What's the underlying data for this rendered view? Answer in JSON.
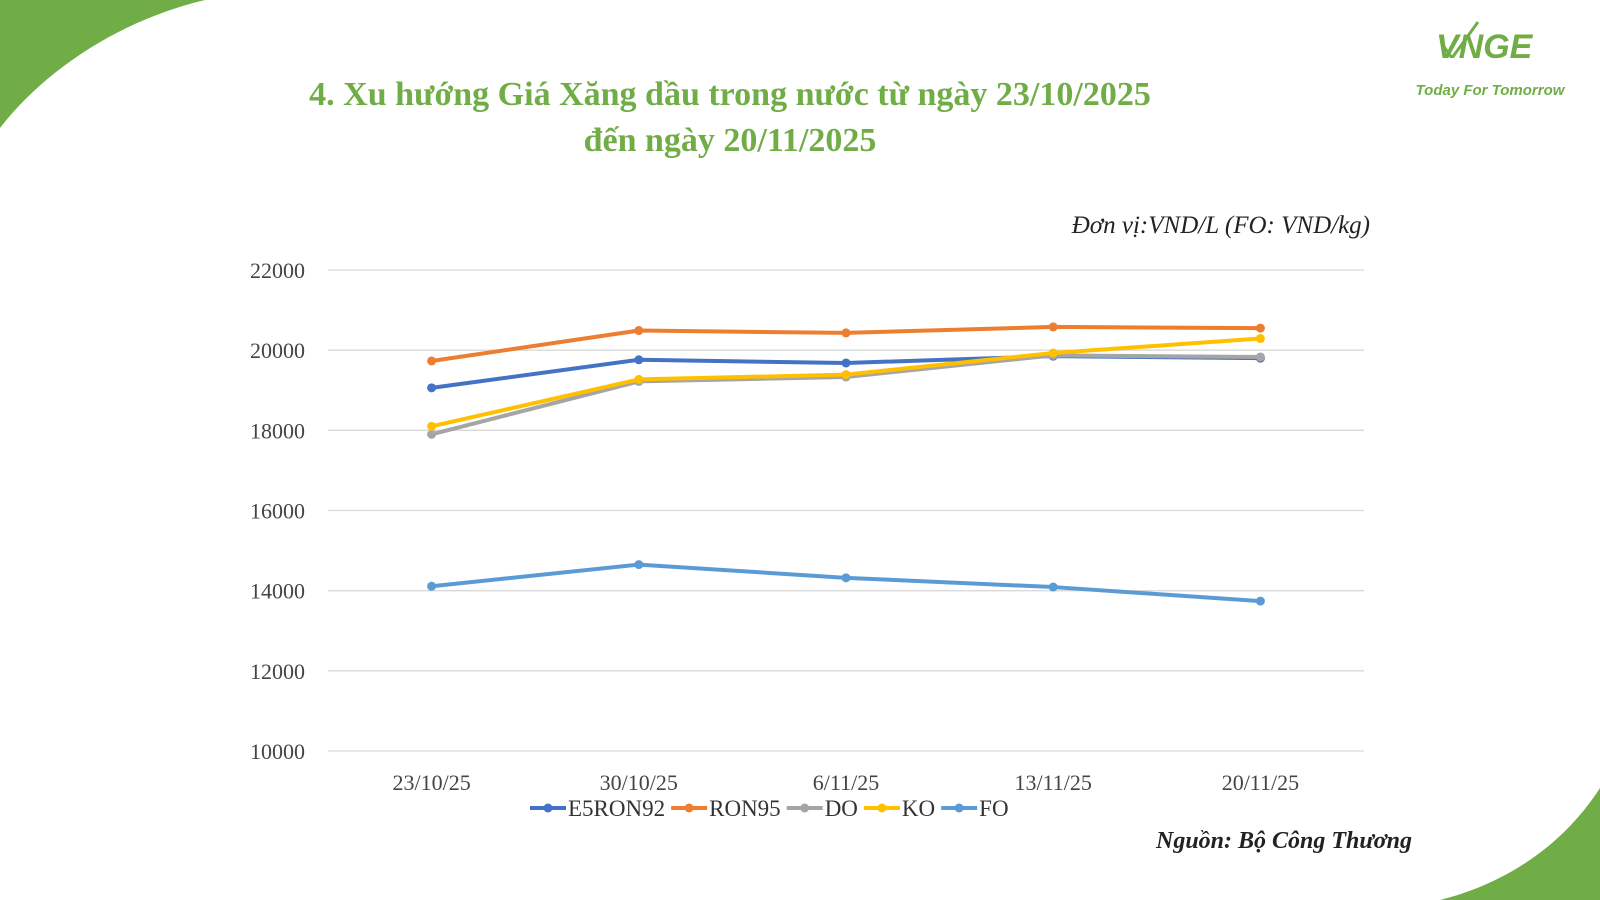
{
  "title": {
    "line1": "4. Xu hướng Giá Xăng dầu trong nước từ ngày 23/10/2025",
    "line2": "đến ngày 20/11/2025"
  },
  "logo": {
    "mark": "VNGE",
    "tagline": "Today For Tomorrow"
  },
  "unit_note": "Đơn vị:VND/L (FO: VND/kg)",
  "source_note": "Nguồn: Bộ Công Thương",
  "colors": {
    "accent": "#70ad47",
    "grid": "#d9d9d9"
  },
  "chart_data": {
    "type": "line",
    "categories": [
      "23/10/25",
      "30/10/25",
      "6/11/25",
      "13/11/25",
      "20/11/25"
    ],
    "ylim": [
      10000,
      22000
    ],
    "yticks": [
      10000,
      12000,
      14000,
      16000,
      18000,
      20000,
      22000
    ],
    "grid": true,
    "legend": "bottom",
    "series": [
      {
        "name": "E5RON92",
        "color": "#4472c4",
        "values": [
          19060,
          19760,
          19680,
          19850,
          19800
        ]
      },
      {
        "name": "RON95",
        "color": "#ed7d31",
        "values": [
          19730,
          20490,
          20430,
          20580,
          20550
        ]
      },
      {
        "name": "DO",
        "color": "#a5a5a5",
        "values": [
          17900,
          19220,
          19330,
          19870,
          19830
        ]
      },
      {
        "name": "KO",
        "color": "#ffc000",
        "values": [
          18100,
          19270,
          19390,
          19930,
          20290
        ]
      },
      {
        "name": "FO",
        "color": "#5b9bd5",
        "values": [
          14110,
          14650,
          14320,
          14090,
          13740
        ]
      }
    ]
  }
}
